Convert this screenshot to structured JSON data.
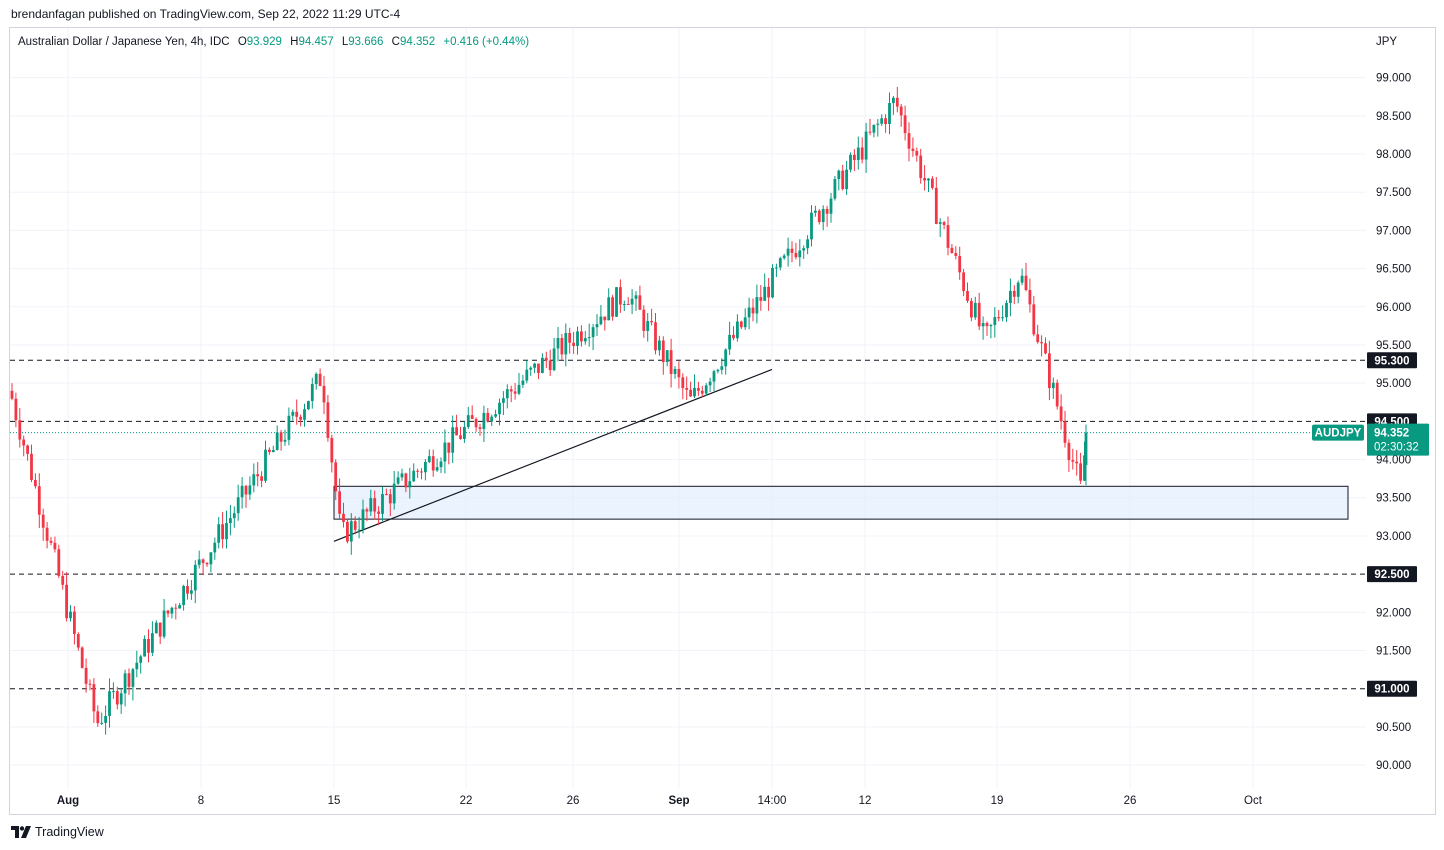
{
  "header": {
    "publisher_line": "brendanfagan published on TradingView.com, Sep 22, 2022 11:29 UTC-4"
  },
  "legend": {
    "symbol": "Australian Dollar / Japanese Yen, 4h, IDC",
    "o_label": "O",
    "o_value": "93.929",
    "h_label": "H",
    "h_value": "94.457",
    "l_label": "L",
    "l_value": "93.666",
    "c_label": "C",
    "c_value": "94.352",
    "change": "+0.416 (+0.44%)"
  },
  "price_axis": {
    "currency": "JPY",
    "ticks": [
      "99.000",
      "98.500",
      "98.000",
      "97.500",
      "97.000",
      "96.500",
      "96.000",
      "95.500",
      "95.000",
      "94.000",
      "93.500",
      "93.000",
      "92.000",
      "91.500",
      "90.500",
      "90.000"
    ],
    "tick_values": [
      99.0,
      98.5,
      98.0,
      97.5,
      97.0,
      96.5,
      96.0,
      95.5,
      95.0,
      94.0,
      93.5,
      93.0,
      92.0,
      91.5,
      90.5,
      90.0
    ]
  },
  "time_axis": {
    "labels": [
      "Aug",
      "8",
      "15",
      "22",
      "26",
      "Sep",
      "14:00",
      "12",
      "19",
      "26",
      "Oct"
    ],
    "bold": [
      true,
      false,
      false,
      false,
      false,
      true,
      false,
      false,
      false,
      false,
      false
    ]
  },
  "levels": [
    {
      "price": 95.3,
      "label": "95.300"
    },
    {
      "price": 94.5,
      "label": "94.500"
    },
    {
      "price": 92.5,
      "label": "92.500"
    },
    {
      "price": 91.0,
      "label": "91.000"
    }
  ],
  "last_price": {
    "ticker": "AUDJPY",
    "price_label": "94.352",
    "countdown": "02:30:32",
    "price": 94.352,
    "color": "#089981"
  },
  "colors": {
    "up": "#089981",
    "down": "#f23645",
    "zone_fill": "#e3effd",
    "grid": "#f0f3fa"
  },
  "chart_data": {
    "type": "candlestick",
    "symbol": "AUDJPY",
    "interval": "4h",
    "y_range": [
      89.7,
      99.65
    ],
    "x_labels": [
      "Aug",
      "8",
      "15",
      "22",
      "26",
      "Sep",
      "14:00",
      "12",
      "19",
      "26",
      "Oct"
    ],
    "last_close": 94.352,
    "last_open": 93.929,
    "last_high": 94.457,
    "last_low": 93.666,
    "horizontal_levels": [
      95.3,
      94.5,
      92.5,
      91.0
    ],
    "support_zone": {
      "low": 93.22,
      "high": 93.65
    },
    "trendline": {
      "from_price": 92.93,
      "to_price": 95.18
    },
    "key_points": [
      {
        "label": "Start",
        "price": 94.9
      },
      {
        "label": "Low",
        "price": 90.55
      },
      {
        "label": "Swing high",
        "price": 95.1
      },
      {
        "label": "Swing low",
        "price": 93.0
      },
      {
        "label": "Swing high",
        "price": 96.2
      },
      {
        "label": "Swing low",
        "price": 94.75
      },
      {
        "label": "Peak",
        "price": 98.7
      },
      {
        "label": "Swing low",
        "price": 95.55
      },
      {
        "label": "Swing high",
        "price": 96.45
      },
      {
        "label": "Low",
        "price": 93.55
      },
      {
        "label": "Last",
        "price": 94.352
      }
    ]
  },
  "footer": {
    "brand": "TradingView"
  }
}
